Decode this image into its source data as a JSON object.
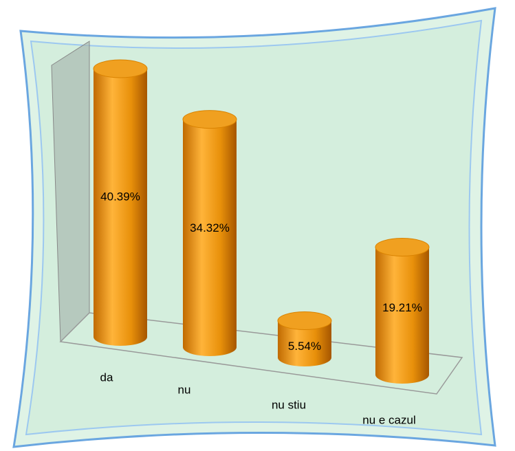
{
  "chart_data": {
    "type": "bar",
    "categories": [
      "da",
      "nu",
      "nu stiu",
      "nu e cazul"
    ],
    "values": [
      40.39,
      34.32,
      5.54,
      19.21
    ],
    "value_labels": [
      "40.39%",
      "34.32%",
      "5.54%",
      "19.21%"
    ],
    "color": "#f0a020"
  }
}
